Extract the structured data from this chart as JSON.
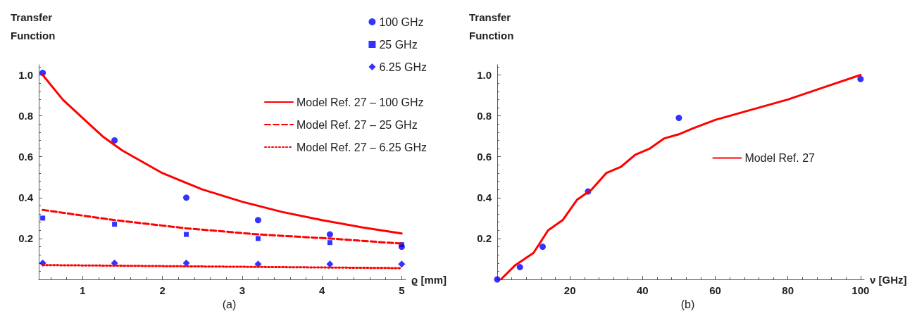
{
  "chart_data": [
    {
      "type": "scatter",
      "ylabel": "Transfer Function",
      "xlabel": "ϱ [mm]",
      "annotations": [
        "(a)"
      ],
      "xlim": [
        0.45,
        5.05
      ],
      "xticks": [
        1,
        2,
        3,
        4,
        5
      ],
      "ylim": [
        0,
        1.05
      ],
      "yticks": [
        {
          "value": 0,
          "label": null
        },
        0.2,
        0.4,
        0.6,
        0.8,
        "1.0"
      ],
      "grid": false,
      "legend": "top right",
      "series": [
        {
          "name": "100 GHz",
          "marker": "circle",
          "color": "#0000ff",
          "x": [
            0.5,
            1.4,
            2.3,
            3.2,
            4.1,
            5.0
          ],
          "values": [
            1.01,
            0.68,
            0.4,
            0.29,
            0.22,
            0.16
          ]
        },
        {
          "name": "25 GHz",
          "marker": "square",
          "color": "#0000ff",
          "x": [
            0.5,
            1.4,
            2.3,
            3.2,
            4.1,
            5.0
          ],
          "values": [
            0.3,
            0.27,
            0.22,
            0.2,
            0.18,
            0.17
          ]
        },
        {
          "name": "6.25 GHz",
          "marker": "diamond",
          "color": "#0000ff",
          "x": [
            0.5,
            1.4,
            2.3,
            3.2,
            4.1,
            5.0
          ],
          "values": [
            0.08,
            0.08,
            0.08,
            0.075,
            0.075,
            0.075
          ]
        },
        {
          "name": "Model Ref. 27 – 100 GHz",
          "type": "line",
          "marker": "none",
          "line_style": "solid",
          "color": "#ff0000",
          "x": [
            0.5,
            0.75,
            1.0,
            1.25,
            1.5,
            2.0,
            2.5,
            3.0,
            3.5,
            4.0,
            4.5,
            5.0
          ],
          "values": [
            1.0,
            0.88,
            0.79,
            0.7,
            0.63,
            0.52,
            0.44,
            0.38,
            0.33,
            0.29,
            0.255,
            0.225
          ]
        },
        {
          "name": "Model Ref. 27 – 25 GHz",
          "type": "line",
          "marker": "none",
          "line_style": "dashed",
          "color": "#ff0000",
          "x": [
            0.5,
            1.4,
            2.3,
            3.2,
            4.1,
            5.0
          ],
          "values": [
            0.34,
            0.29,
            0.25,
            0.22,
            0.2,
            0.175
          ]
        },
        {
          "name": "Model Ref. 27 – 6.25 GHz",
          "type": "line",
          "marker": "none",
          "line_style": "dotted",
          "color": "#ff0000",
          "x": [
            0.5,
            5.0
          ],
          "values": [
            0.07,
            0.055
          ]
        }
      ]
    },
    {
      "type": "scatter",
      "ylabel": "Transfer Function",
      "xlabel": "ν [GHz]",
      "annotations": [
        "(b)"
      ],
      "xlim": [
        0,
        101
      ],
      "xticks": [
        {
          "value": 0,
          "label": null
        },
        20,
        40,
        60,
        80,
        100
      ],
      "ylim": [
        0,
        1.05
      ],
      "yticks": [
        {
          "value": 0,
          "label": null
        },
        0.2,
        0.4,
        0.6,
        0.8,
        "1.0"
      ],
      "grid": false,
      "legend": "right",
      "series": [
        {
          "marker": "circle",
          "color": "#0000ff",
          "x": [
            0,
            6.25,
            12.5,
            25,
            50,
            100
          ],
          "values": [
            0,
            0.06,
            0.16,
            0.43,
            0.79,
            0.98
          ]
        },
        {
          "name": "Model Ref. 27",
          "type": "line",
          "marker": "none",
          "line_style": "solid",
          "color": "#ff0000",
          "x": [
            1,
            5,
            10,
            14,
            18,
            22,
            26,
            30,
            34,
            38,
            42,
            46,
            50,
            54,
            60,
            70,
            80,
            90,
            100
          ],
          "values": [
            0,
            0.07,
            0.13,
            0.24,
            0.29,
            0.39,
            0.44,
            0.52,
            0.55,
            0.61,
            0.64,
            0.69,
            0.71,
            0.74,
            0.78,
            0.83,
            0.88,
            0.94,
            1.0
          ]
        }
      ]
    }
  ]
}
